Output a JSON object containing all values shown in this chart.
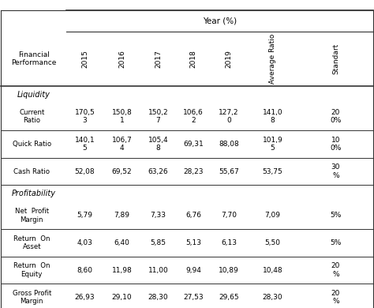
{
  "title": "Year (%)",
  "col_headers": [
    "Financial\nPerformance",
    "2015",
    "2016",
    "2017",
    "2018",
    "2019",
    "Average Ratio",
    "Standart"
  ],
  "col_header_rotation": [
    0,
    90,
    90,
    90,
    90,
    90,
    90,
    90
  ],
  "sections": [
    {
      "section_label": "Liquidity",
      "rows": [
        {
          "label": "Current\nRatio",
          "values": [
            "170,5\n3",
            "150,8\n1",
            "150,2\n7",
            "106,6\n2",
            "127,2\n0",
            "141,0\n8",
            "20\n0%"
          ]
        },
        {
          "label": "Quick Ratio",
          "values": [
            "140,1\n5",
            "106,7\n4",
            "105,4\n8",
            "69,31",
            "88,08",
            "101,9\n5",
            "10\n0%"
          ]
        },
        {
          "label": "Cash Ratio",
          "values": [
            "52,08",
            "69,52",
            "63,26",
            "28,23",
            "55,67",
            "53,75",
            "30\n%"
          ]
        }
      ]
    },
    {
      "section_label": "Profitability",
      "rows": [
        {
          "label": "Net  Profit\nMargin",
          "values": [
            "5,79",
            "7,89",
            "7,33",
            "6,76",
            "7,70",
            "7,09",
            "5%"
          ]
        },
        {
          "label": "Return  On\nAsset",
          "values": [
            "4,03",
            "6,40",
            "5,85",
            "5,13",
            "6,13",
            "5,50",
            "5%"
          ]
        },
        {
          "label": "Return  On\nEquity",
          "values": [
            "8,60",
            "11,98",
            "11,00",
            "9,94",
            "10,89",
            "10,48",
            "20\n%"
          ]
        }
      ]
    },
    {
      "section_label": "",
      "rows": [
        {
          "label": "Gross Profit\nMargin",
          "values": [
            "26,93",
            "29,10",
            "28,30",
            "27,53",
            "29,65",
            "28,30",
            "20\n%"
          ]
        }
      ]
    }
  ],
  "bg_color": "#ffffff",
  "line_color": "#333333",
  "text_color": "#000000",
  "section_label_style": "italic"
}
